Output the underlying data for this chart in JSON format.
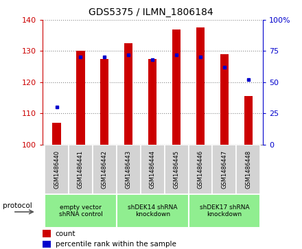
{
  "title": "GDS5375 / ILMN_1806184",
  "samples": [
    "GSM1486440",
    "GSM1486441",
    "GSM1486442",
    "GSM1486443",
    "GSM1486444",
    "GSM1486445",
    "GSM1486446",
    "GSM1486447",
    "GSM1486448"
  ],
  "count_values": [
    107,
    130,
    127.5,
    132.5,
    127.5,
    137,
    137.5,
    129,
    115.5
  ],
  "percentile_values": [
    30,
    70,
    70,
    72,
    68,
    72,
    70,
    62,
    52
  ],
  "ylim_left": [
    100,
    140
  ],
  "ylim_right": [
    0,
    100
  ],
  "yticks_left": [
    100,
    110,
    120,
    130,
    140
  ],
  "yticks_right": [
    0,
    25,
    50,
    75,
    100
  ],
  "groups": [
    {
      "label": "empty vector\nshRNA control",
      "start": 0,
      "end": 3,
      "color": "#90EE90"
    },
    {
      "label": "shDEK14 shRNA\nknockdown",
      "start": 3,
      "end": 6,
      "color": "#90EE90"
    },
    {
      "label": "shDEK17 shRNA\nknockdown",
      "start": 6,
      "end": 9,
      "color": "#90EE90"
    }
  ],
  "bar_color": "#CC0000",
  "dot_color": "#0000CC",
  "bar_width": 0.35,
  "grid_color": "#888888",
  "left_tick_color": "#CC0000",
  "right_tick_color": "#0000CC",
  "sample_box_color": "#D3D3D3",
  "group_box_color": "#90EE90",
  "fig_width": 4.4,
  "fig_height": 3.63,
  "dpi": 100
}
